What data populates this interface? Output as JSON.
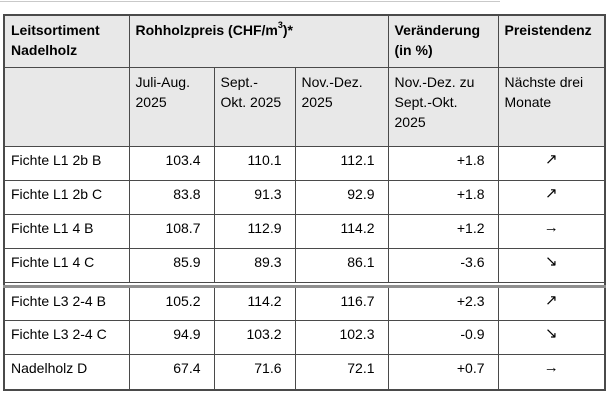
{
  "colors": {
    "header_bg": "#e8e8e8",
    "border": "#4a4a4a",
    "section_rule": "#8f8f8f",
    "top_rule": "#c9c9c9"
  },
  "table": {
    "header": {
      "col1_lines": [
        "Leitsortiment",
        "Nadelholz"
      ],
      "price_group_prefix": "Rohholzpreis (CHF/m",
      "price_unit_sup": "3",
      "price_group_suffix": ")*",
      "change_lines": [
        "Veränderung",
        "(in %)"
      ],
      "trend_label": "Preistendenz",
      "sub": {
        "period1_lines": [
          "Juli-Aug.",
          "2025"
        ],
        "period2_lines": [
          "Sept.-",
          "Okt. 2025"
        ],
        "period3_lines": [
          "Nov.-Dez.",
          "2025"
        ],
        "change_lines": [
          "Nov.-Dez. zu",
          "Sept.-Okt.",
          "2025"
        ],
        "trend_lines": [
          "Nächste drei",
          "Monate"
        ]
      }
    },
    "rows": [
      {
        "label": "Fichte L1 2b B",
        "p1": "103.4",
        "p2": "110.1",
        "p3": "112.1",
        "change": "+1.8",
        "trend": "↗"
      },
      {
        "label": "Fichte L1 2b C",
        "p1": "83.8",
        "p2": "91.3",
        "p3": "92.9",
        "change": "+1.8",
        "trend": "↗"
      },
      {
        "label": "Fichte L1 4 B",
        "p1": "108.7",
        "p2": "112.9",
        "p3": "114.2",
        "change": "+1.2",
        "trend": "→"
      },
      {
        "label": "Fichte L1 4 C",
        "p1": "85.9",
        "p2": "89.3",
        "p3": "86.1",
        "change": "-3.6",
        "trend": "↘"
      },
      {
        "label": "Fichte L3 2-4 B",
        "p1": "105.2",
        "p2": "114.2",
        "p3": "116.7",
        "change": "+2.3",
        "trend": "↗"
      },
      {
        "label": "Fichte L3 2-4 C",
        "p1": "94.9",
        "p2": "103.2",
        "p3": "102.3",
        "change": "-0.9",
        "trend": "↘"
      },
      {
        "label": "Nadelholz D",
        "p1": "67.4",
        "p2": "71.6",
        "p3": "72.1",
        "change": "+0.7",
        "trend": "→"
      }
    ]
  },
  "chart_data": {
    "type": "table",
    "title": "Leitsortiment Nadelholz – Rohholzpreis (CHF/m³)*",
    "columns": [
      "Leitsortiment Nadelholz",
      "Rohholzpreis (CHF/m³)* Juli-Aug. 2025",
      "Rohholzpreis (CHF/m³)* Sept.-Okt. 2025",
      "Rohholzpreis (CHF/m³)* Nov.-Dez. 2025",
      "Veränderung (in %) Nov.-Dez. zu Sept.-Okt. 2025",
      "Preistendenz Nächste drei Monate"
    ],
    "rows": [
      [
        "Fichte L1 2b B",
        103.4,
        110.1,
        112.1,
        1.8,
        "steigend ↗"
      ],
      [
        "Fichte L1 2b C",
        83.8,
        91.3,
        92.9,
        1.8,
        "steigend ↗"
      ],
      [
        "Fichte L1 4 B",
        108.7,
        112.9,
        114.2,
        1.2,
        "gleichbleibend →"
      ],
      [
        "Fichte L1 4 C",
        85.9,
        89.3,
        86.1,
        -3.6,
        "sinkend ↘"
      ],
      [
        "Fichte L3 2-4 B",
        105.2,
        114.2,
        116.7,
        2.3,
        "steigend ↗"
      ],
      [
        "Fichte L3 2-4 C",
        94.9,
        103.2,
        102.3,
        -0.9,
        "sinkend ↘"
      ],
      [
        "Nadelholz D",
        67.4,
        71.6,
        72.1,
        0.7,
        "gleichbleibend →"
      ]
    ]
  }
}
